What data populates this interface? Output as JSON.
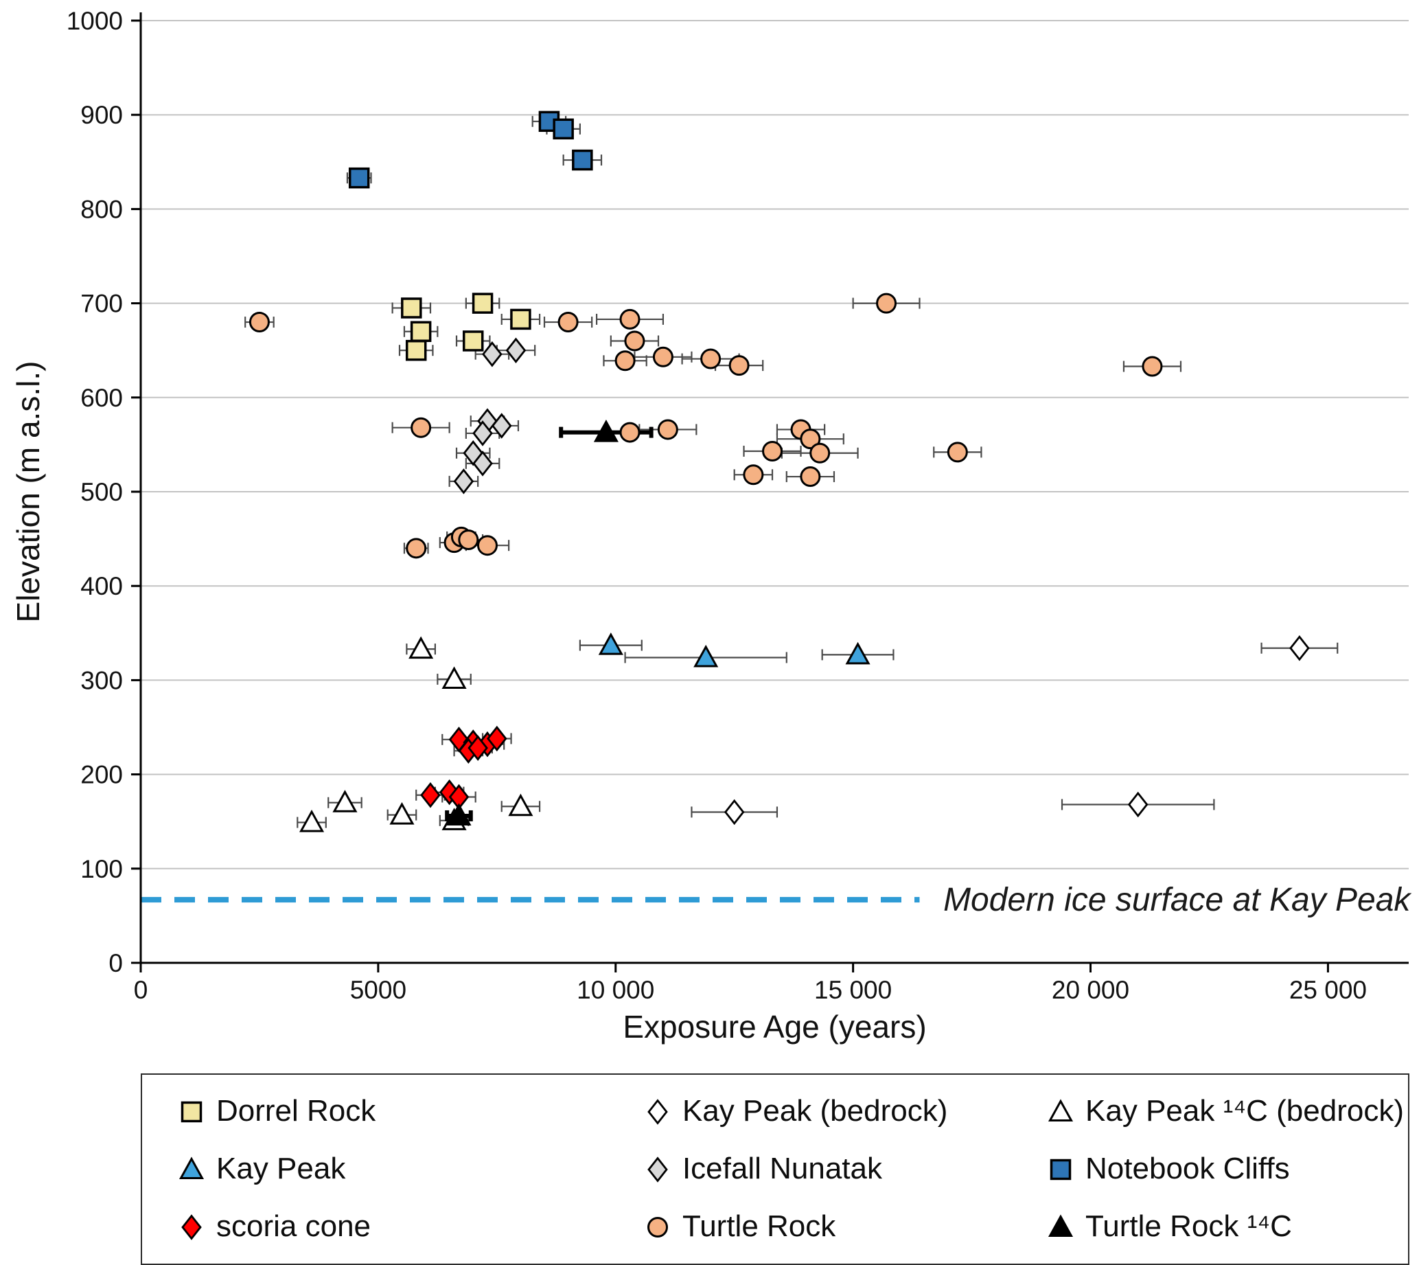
{
  "chart_data": {
    "type": "scatter",
    "title": "",
    "xlabel": "Exposure Age (years)",
    "ylabel": "Elevation (m a.s.l.)",
    "xlim": [
      0,
      26700
    ],
    "ylim": [
      0,
      1000
    ],
    "x_ticks": [
      0,
      5000,
      10000,
      15000,
      20000,
      25000
    ],
    "x_tick_labels": [
      "0",
      "5000",
      "10 000",
      "15 000",
      "20 000",
      "25 000"
    ],
    "y_ticks": [
      0,
      100,
      200,
      300,
      400,
      500,
      600,
      700,
      800,
      900,
      1000
    ],
    "grid": "horizontal",
    "grid_color": "#c3c3c3",
    "legend_position": "bottom",
    "ice_line": {
      "y": 67,
      "x_start": 0,
      "x_end": 16400,
      "color": "#2E9BD5",
      "style": "dashed"
    },
    "annotation": {
      "text": "Modern ice surface at Kay Peak",
      "x": 16900,
      "y": 67,
      "style": "italic"
    },
    "point_format": [
      "age_years",
      "elevation_m",
      "age_error_years"
    ],
    "series": [
      {
        "name": "Dorrel Rock",
        "marker": "square",
        "fill": "#F2E6A2",
        "stroke": "#000000",
        "points": [
          [
            5700,
            695,
            400
          ],
          [
            7200,
            700,
            350
          ],
          [
            8000,
            683,
            400
          ],
          [
            5900,
            670,
            350
          ],
          [
            7000,
            660,
            350
          ],
          [
            5800,
            650,
            350
          ]
        ]
      },
      {
        "name": "Kay Peak (bedrock)",
        "marker": "diamond",
        "fill": "#FFFFFF",
        "stroke": "#000000",
        "points": [
          [
            24400,
            334,
            800
          ],
          [
            21000,
            168,
            1600
          ],
          [
            12500,
            160,
            900
          ]
        ]
      },
      {
        "name": "Kay Peak ¹⁴C (bedrock)",
        "marker": "triangle",
        "fill": "#FFFFFF",
        "stroke": "#000000",
        "points": [
          [
            5900,
            333,
            300
          ],
          [
            6600,
            301,
            350
          ],
          [
            4300,
            170,
            350
          ],
          [
            3600,
            149,
            300
          ],
          [
            5500,
            157,
            300
          ],
          [
            8000,
            166,
            400
          ],
          [
            6600,
            151,
            300
          ]
        ]
      },
      {
        "name": "Kay Peak",
        "marker": "triangle",
        "fill": "#3FA3DC",
        "stroke": "#000000",
        "points": [
          [
            9900,
            337,
            650
          ],
          [
            11900,
            324,
            1700
          ],
          [
            15100,
            327,
            750
          ]
        ]
      },
      {
        "name": "Icefall Nunatak",
        "marker": "diamond",
        "fill": "#D9D9D9",
        "stroke": "#000000",
        "points": [
          [
            7400,
            646,
            350
          ],
          [
            7900,
            650,
            400
          ],
          [
            7300,
            575,
            350
          ],
          [
            7600,
            570,
            350
          ],
          [
            7200,
            562,
            350
          ],
          [
            7000,
            541,
            350
          ],
          [
            7200,
            530,
            350
          ],
          [
            6800,
            511,
            300
          ]
        ]
      },
      {
        "name": "Notebook Cliffs",
        "marker": "square",
        "fill": "#2E75B6",
        "stroke": "#000000",
        "points": [
          [
            8600,
            893,
            350
          ],
          [
            8900,
            885,
            350
          ],
          [
            9300,
            852,
            400
          ],
          [
            4600,
            833,
            250
          ]
        ]
      },
      {
        "name": "scoria cone",
        "marker": "diamond",
        "fill": "#FF0000",
        "stroke": "#000000",
        "points": [
          [
            6700,
            237,
            350
          ],
          [
            7000,
            234,
            350
          ],
          [
            7300,
            232,
            350
          ],
          [
            7500,
            238,
            300
          ],
          [
            6900,
            225,
            300
          ],
          [
            7100,
            228,
            300
          ],
          [
            6100,
            178,
            300
          ],
          [
            6500,
            181,
            300
          ],
          [
            6700,
            176,
            350
          ]
        ]
      },
      {
        "name": "Turtle Rock",
        "marker": "circle",
        "fill": "#F5B183",
        "stroke": "#000000",
        "points": [
          [
            2500,
            680,
            300
          ],
          [
            9000,
            680,
            500
          ],
          [
            10300,
            683,
            700
          ],
          [
            10400,
            660,
            500
          ],
          [
            10200,
            639,
            450
          ],
          [
            11000,
            643,
            600
          ],
          [
            12000,
            641,
            600
          ],
          [
            12600,
            634,
            500
          ],
          [
            15700,
            700,
            700
          ],
          [
            21300,
            633,
            600
          ],
          [
            5900,
            568,
            600
          ],
          [
            10300,
            563,
            450
          ],
          [
            11100,
            566,
            600
          ],
          [
            13300,
            543,
            600
          ],
          [
            13900,
            566,
            500
          ],
          [
            14100,
            556,
            700
          ],
          [
            14300,
            541,
            800
          ],
          [
            12900,
            518,
            400
          ],
          [
            14100,
            516,
            500
          ],
          [
            17200,
            542,
            500
          ],
          [
            5800,
            440,
            250
          ],
          [
            6600,
            446,
            300
          ],
          [
            6750,
            452,
            300
          ],
          [
            6900,
            449,
            300
          ],
          [
            7300,
            443,
            450
          ]
        ]
      },
      {
        "name": "Turtle Rock ¹⁴C",
        "marker": "triangle",
        "fill": "#000000",
        "stroke": "#000000",
        "err_color": "#000000",
        "err_width": 6,
        "points": [
          [
            9800,
            563,
            950
          ],
          [
            6700,
            156,
            250
          ]
        ]
      }
    ]
  }
}
